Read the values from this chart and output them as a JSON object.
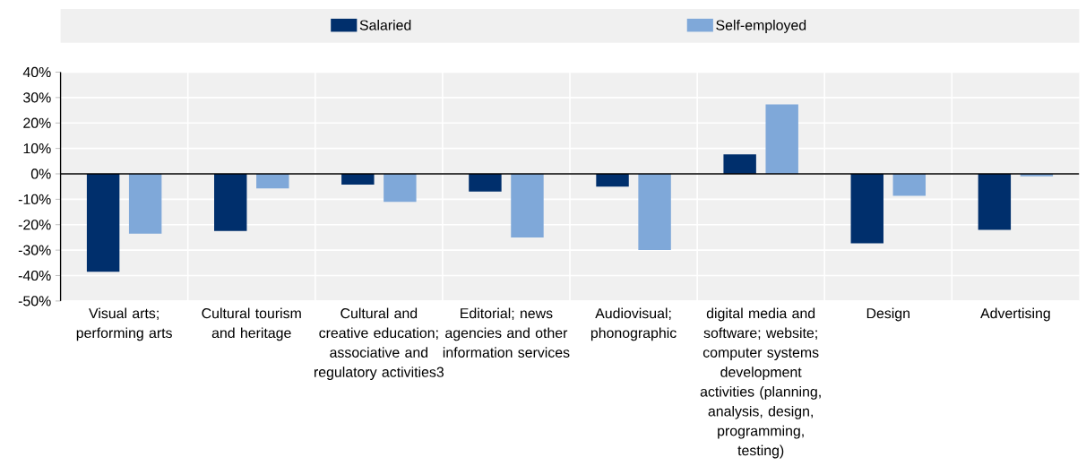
{
  "chart_data": {
    "type": "bar",
    "categories": [
      "Visual arts; performing arts",
      "Cultural tourism and heritage",
      "Cultural and creative education; associative and regulatory activities3",
      "Editorial; news agencies and other information services",
      "Audiovisual; phonographic",
      "digital media and software; website; computer systems development activities (planning, analysis, design, programming, testing)",
      "Design",
      "Advertising"
    ],
    "series": [
      {
        "name": "Salaried",
        "color": "#002f6c",
        "values": [
          -38.5,
          -22.5,
          -4.2,
          -7,
          -5,
          7.7,
          -27.3,
          -22
        ]
      },
      {
        "name": "Self-employed",
        "color": "#7fa8d9",
        "values": [
          -23.5,
          -5.7,
          -11,
          -25,
          -30,
          27.3,
          -8.6,
          -1
        ]
      }
    ],
    "ylim": [
      -50,
      40
    ],
    "yticks": [
      {
        "value": 40,
        "label": "40%"
      },
      {
        "value": 30,
        "label": "30%"
      },
      {
        "value": 20,
        "label": "20%"
      },
      {
        "value": 10,
        "label": "10%"
      },
      {
        "value": 0,
        "label": "0%"
      },
      {
        "value": -10,
        "label": "-10%"
      },
      {
        "value": -20,
        "label": "-20%"
      },
      {
        "value": -30,
        "label": "-30%"
      },
      {
        "value": -40,
        "label": "-40%"
      },
      {
        "value": -50,
        "label": "-50%"
      }
    ],
    "grid": true,
    "legend": "top"
  }
}
